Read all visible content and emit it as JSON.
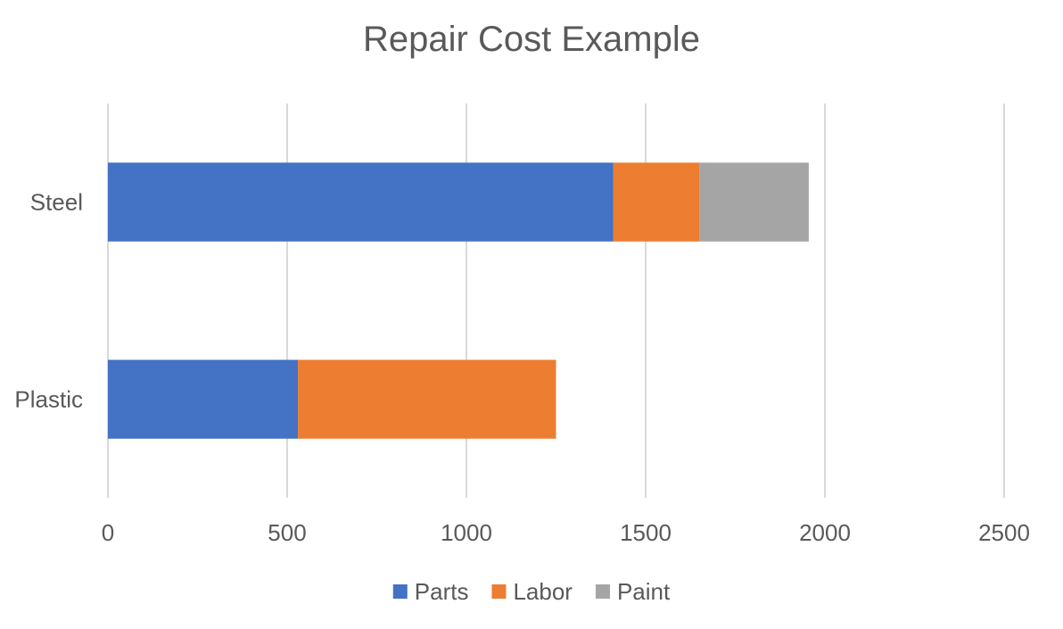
{
  "chart_data": {
    "type": "bar",
    "orientation": "horizontal",
    "stacked": true,
    "title": "Repair Cost Example",
    "categories": [
      "Steel",
      "Plastic"
    ],
    "series": [
      {
        "name": "Parts",
        "color": "#4472C4",
        "values": [
          1410,
          530
        ]
      },
      {
        "name": "Labor",
        "color": "#ED7D31",
        "values": [
          240,
          720
        ]
      },
      {
        "name": "Paint",
        "color": "#A5A5A5",
        "values": [
          305,
          0
        ]
      }
    ],
    "xlim": [
      0,
      2500
    ],
    "xticks": [
      0,
      500,
      1000,
      1500,
      2000,
      2500
    ],
    "grid": true,
    "legend_position": "bottom"
  }
}
